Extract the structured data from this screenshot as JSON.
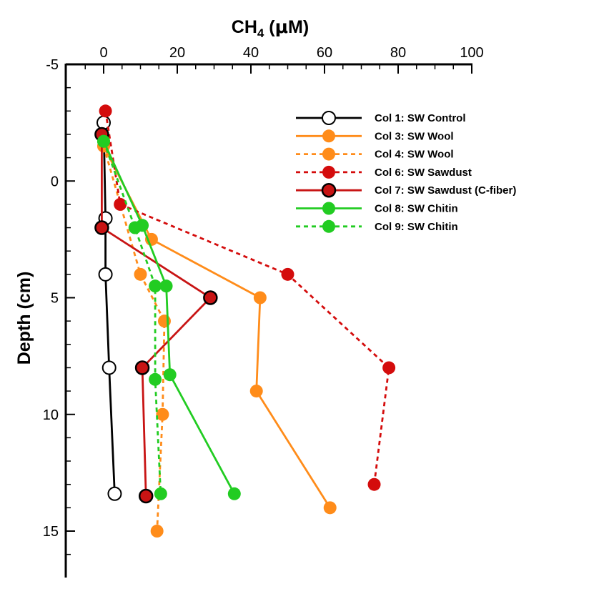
{
  "chart_data": {
    "type": "line",
    "title": "",
    "xlabel": {
      "main": "CH",
      "sub": "4",
      "open": " (",
      "mu": "μ",
      "unit": "M)"
    },
    "ylabel": "Depth (cm)",
    "xlim": [
      -10,
      100
    ],
    "ylim": [
      -5,
      17
    ],
    "y_inverted": true,
    "x_axis_position": "top",
    "x_ticks": [
      0,
      20,
      40,
      60,
      80,
      100
    ],
    "y_ticks": [
      -5,
      0,
      5,
      10,
      15
    ],
    "grid": false,
    "legend_position": "top-right",
    "series": [
      {
        "name": "Col 1: SW Control",
        "color": "#000000",
        "dash": "solid",
        "marker": "open-circle",
        "points": [
          [
            0,
            -2.5
          ],
          [
            0.5,
            1.6
          ],
          [
            0.5,
            4
          ],
          [
            1.5,
            8
          ],
          [
            3,
            13.4
          ]
        ]
      },
      {
        "name": "Col 3: SW Wool",
        "color": "#ff8c1a",
        "dash": "solid",
        "marker": "filled-circle",
        "points": [
          [
            0,
            -1.5
          ],
          [
            13,
            2.5
          ],
          [
            42.5,
            5
          ],
          [
            41.5,
            9
          ],
          [
            61.5,
            14
          ]
        ]
      },
      {
        "name": "Col 4: SW Wool",
        "color": "#ff8c1a",
        "dash": "dashed",
        "marker": "filled-circle",
        "points": [
          [
            0,
            -1.5
          ],
          [
            10,
            4
          ],
          [
            16.5,
            6
          ],
          [
            16,
            10
          ],
          [
            14.5,
            15
          ]
        ]
      },
      {
        "name": "Col 6: SW Sawdust",
        "color": "#d40c0c",
        "dash": "dashed",
        "marker": "filled-circle",
        "points": [
          [
            0.5,
            -3
          ],
          [
            4.5,
            1
          ],
          [
            50,
            4
          ],
          [
            77.5,
            8
          ],
          [
            73.5,
            13
          ]
        ]
      },
      {
        "name": "Col 7: SW Sawdust (C-fiber)",
        "color": "#c81414",
        "dash": "solid",
        "marker": "outlined-filled-circle",
        "points": [
          [
            -0.5,
            -2
          ],
          [
            -0.5,
            2
          ],
          [
            29,
            5
          ],
          [
            10.5,
            8
          ],
          [
            11.5,
            13.5
          ]
        ]
      },
      {
        "name": "Col 8: SW Chitin",
        "color": "#22cc22",
        "dash": "solid",
        "marker": "filled-circle",
        "points": [
          [
            0,
            -1.7
          ],
          [
            10.5,
            1.9
          ],
          [
            17,
            4.5
          ],
          [
            18,
            8.3
          ],
          [
            35.5,
            13.4
          ]
        ]
      },
      {
        "name": "Col 9: SW Chitin",
        "color": "#22cc22",
        "dash": "dashed",
        "marker": "filled-circle",
        "points": [
          [
            0,
            -1.7
          ],
          [
            8.5,
            2
          ],
          [
            14,
            4.5
          ],
          [
            14,
            8.5
          ],
          [
            15.5,
            13.4
          ]
        ]
      }
    ]
  }
}
